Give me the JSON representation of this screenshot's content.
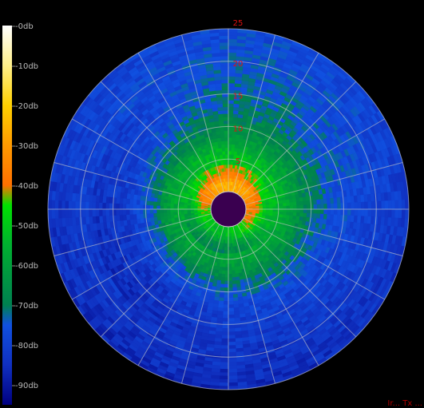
{
  "chart_data": {
    "type": "heatmap",
    "projection": "polar",
    "colorbar": {
      "labels": [
        "-0db",
        "-10db",
        "-20db",
        "-30db",
        "-40db",
        "-50db",
        "-60db",
        "-70db",
        "-80db",
        "-90db"
      ],
      "stops": [
        {
          "db": 0,
          "color": "#ffffff"
        },
        {
          "db": -10,
          "color": "#fff08a"
        },
        {
          "db": -20,
          "color": "#ffd000"
        },
        {
          "db": -30,
          "color": "#ff9a00"
        },
        {
          "db": -40,
          "color": "#ff7000"
        },
        {
          "db": -45,
          "color": "#00e000"
        },
        {
          "db": -55,
          "color": "#00b030"
        },
        {
          "db": -70,
          "color": "#008050"
        },
        {
          "db": -75,
          "color": "#1050e0"
        },
        {
          "db": -85,
          "color": "#1030c0"
        },
        {
          "db": -95,
          "color": "#000080"
        }
      ]
    },
    "radial_ticks": [
      "25",
      "20",
      "15",
      "10",
      "5"
    ],
    "radial_max": 25,
    "hub_color": "#3a0050",
    "spokes": 24,
    "rings": 5,
    "profile": [
      {
        "range": 1.5,
        "db": -38
      },
      {
        "range": 3,
        "db": -52
      },
      {
        "range": 6,
        "db": -57
      },
      {
        "range": 9,
        "db": -68
      },
      {
        "range": 13,
        "db": -76
      },
      {
        "range": 17,
        "db": -78
      },
      {
        "range": 21,
        "db": -80
      },
      {
        "range": 25,
        "db": -82
      }
    ],
    "grid": true
  },
  "footer": {
    "text": "Ir... Tx ..."
  }
}
